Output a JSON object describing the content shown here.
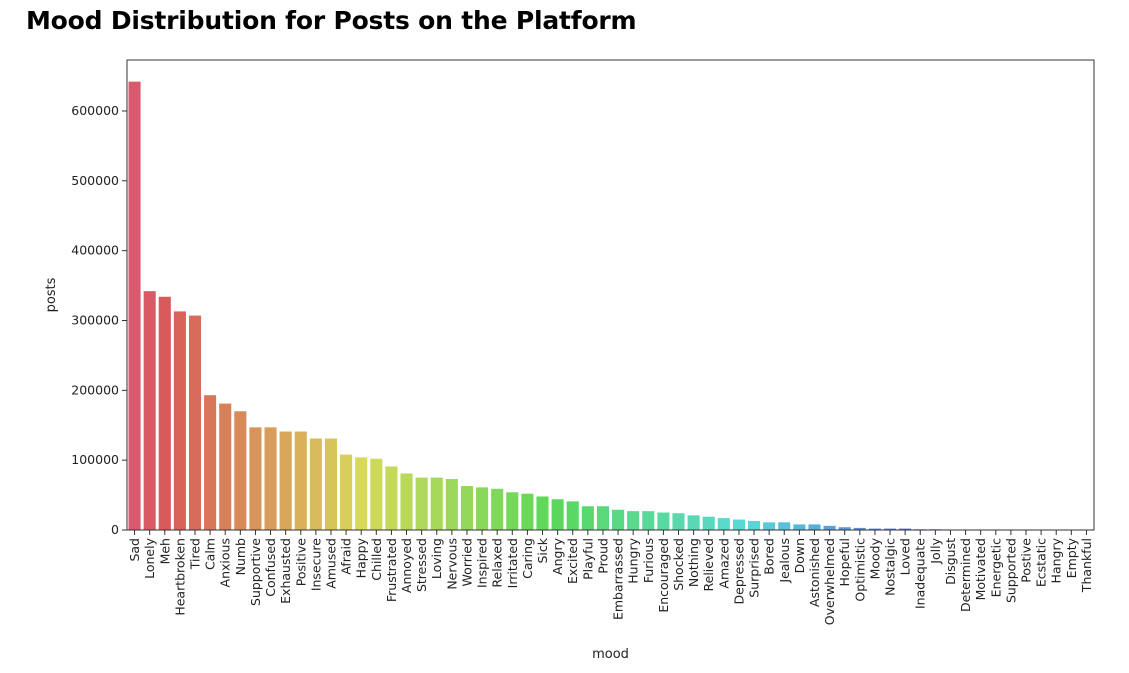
{
  "page": {
    "title": "Mood Distribution for Posts on the Platform"
  },
  "chart_data": {
    "type": "bar",
    "title": "",
    "xlabel": "mood",
    "ylabel": "posts",
    "ylim": [
      0,
      673000
    ],
    "yticks": [
      0,
      100000,
      200000,
      300000,
      400000,
      500000,
      600000
    ],
    "ytick_labels": [
      "0",
      "100000",
      "200000",
      "300000",
      "400000",
      "500000",
      "600000"
    ],
    "grid": false,
    "legend": "none",
    "categories": [
      "Sad",
      "Lonely",
      "Meh",
      "Heartbroken",
      "Tired",
      "Calm",
      "Anxious",
      "Numb",
      "Supportive",
      "Confused",
      "Exhausted",
      "Positive",
      "Insecure",
      "Amused",
      "Afraid",
      "Happy",
      "Chilled",
      "Frustrated",
      "Annoyed",
      "Stressed",
      "Loving",
      "Nervous",
      "Worried",
      "Inspired",
      "Relaxed",
      "Irritated",
      "Caring",
      "Sick",
      "Angry",
      "Excited",
      "Playful",
      "Proud",
      "Embarrassed",
      "Hungry",
      "Furious",
      "Encouraged",
      "Shocked",
      "Nothing",
      "Relieved",
      "Amazed",
      "Depressed",
      "Surprised",
      "Bored",
      "Jealous",
      "Down",
      "Astonished",
      "Overwhelmed",
      "Hopeful",
      "Optimistic",
      "Moody",
      "Nostalgic",
      "Loved",
      "Inadequate",
      "Jolly",
      "Disgust",
      "Determined",
      "Motivated",
      "Energetic",
      "Supported",
      "Postive",
      "Ecstatic",
      "Hangry",
      "Empty",
      "Thankful"
    ],
    "values": [
      642000,
      342000,
      334000,
      313000,
      307000,
      193000,
      181000,
      170000,
      147000,
      147000,
      141000,
      141000,
      131000,
      131000,
      108000,
      104000,
      102000,
      91000,
      81000,
      75000,
      75000,
      73000,
      63000,
      61000,
      59000,
      54000,
      52000,
      48000,
      44000,
      41000,
      34000,
      34000,
      29000,
      27000,
      27000,
      25000,
      24000,
      21000,
      19000,
      17000,
      15000,
      13000,
      11000,
      11000,
      8000,
      8000,
      6000,
      4000,
      3000,
      2000,
      2000,
      2000,
      1000,
      1000,
      500,
      500,
      500,
      500,
      500,
      500,
      500,
      500,
      500,
      500
    ]
  }
}
